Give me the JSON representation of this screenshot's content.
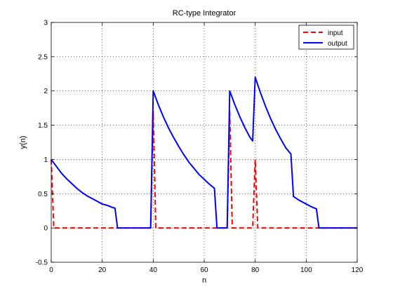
{
  "chart_data": {
    "type": "line",
    "title": "RC-type Integrator",
    "xlabel": "n",
    "ylabel": "y(n)",
    "xlim": [
      0,
      120
    ],
    "ylim": [
      -0.5,
      3
    ],
    "x_ticks": [
      0,
      20,
      40,
      60,
      80,
      100,
      120
    ],
    "y_ticks": [
      -0.5,
      0,
      0.5,
      1,
      1.5,
      2,
      2.5,
      3
    ],
    "x_tick_labels": [
      "0",
      "20",
      "40",
      "60",
      "80",
      "100",
      "120"
    ],
    "y_tick_labels": [
      "-0.5",
      "0",
      "0.5",
      "1",
      "1.5",
      "2",
      "2.5",
      "3"
    ],
    "grid": true,
    "legend_position": "top-right",
    "series": [
      {
        "name": "input",
        "color": "#ff0000",
        "style": "dashed",
        "x": [
          0,
          1,
          39,
          40,
          41,
          69,
          70,
          71,
          79,
          80,
          81,
          120
        ],
        "y": [
          1,
          0,
          0,
          1.7,
          0,
          0,
          1.7,
          0,
          0,
          1,
          0,
          0
        ]
      },
      {
        "name": "output",
        "color": "#0000ff",
        "style": "solid",
        "x": [
          0,
          2,
          4,
          6,
          8,
          10,
          12,
          14,
          16,
          18,
          20,
          22,
          24,
          25,
          26,
          39,
          40,
          42,
          44,
          46,
          48,
          50,
          52,
          54,
          56,
          58,
          60,
          62,
          64,
          65,
          69,
          70,
          72,
          74,
          76,
          78,
          79,
          80,
          82,
          84,
          86,
          88,
          90,
          92,
          94,
          95,
          97,
          100,
          102,
          104,
          105,
          106,
          120
        ],
        "y": [
          1.0,
          0.9,
          0.8,
          0.72,
          0.65,
          0.58,
          0.52,
          0.47,
          0.43,
          0.39,
          0.35,
          0.33,
          0.3,
          0.29,
          0.0,
          0.0,
          2.0,
          1.8,
          1.62,
          1.46,
          1.32,
          1.19,
          1.07,
          0.96,
          0.87,
          0.78,
          0.71,
          0.64,
          0.58,
          0.0,
          0.0,
          2.0,
          1.8,
          1.62,
          1.46,
          1.32,
          1.27,
          2.2,
          1.98,
          1.78,
          1.6,
          1.44,
          1.3,
          1.17,
          1.08,
          0.46,
          0.41,
          0.35,
          0.31,
          0.28,
          0.0,
          0.0,
          0.0
        ]
      }
    ]
  }
}
